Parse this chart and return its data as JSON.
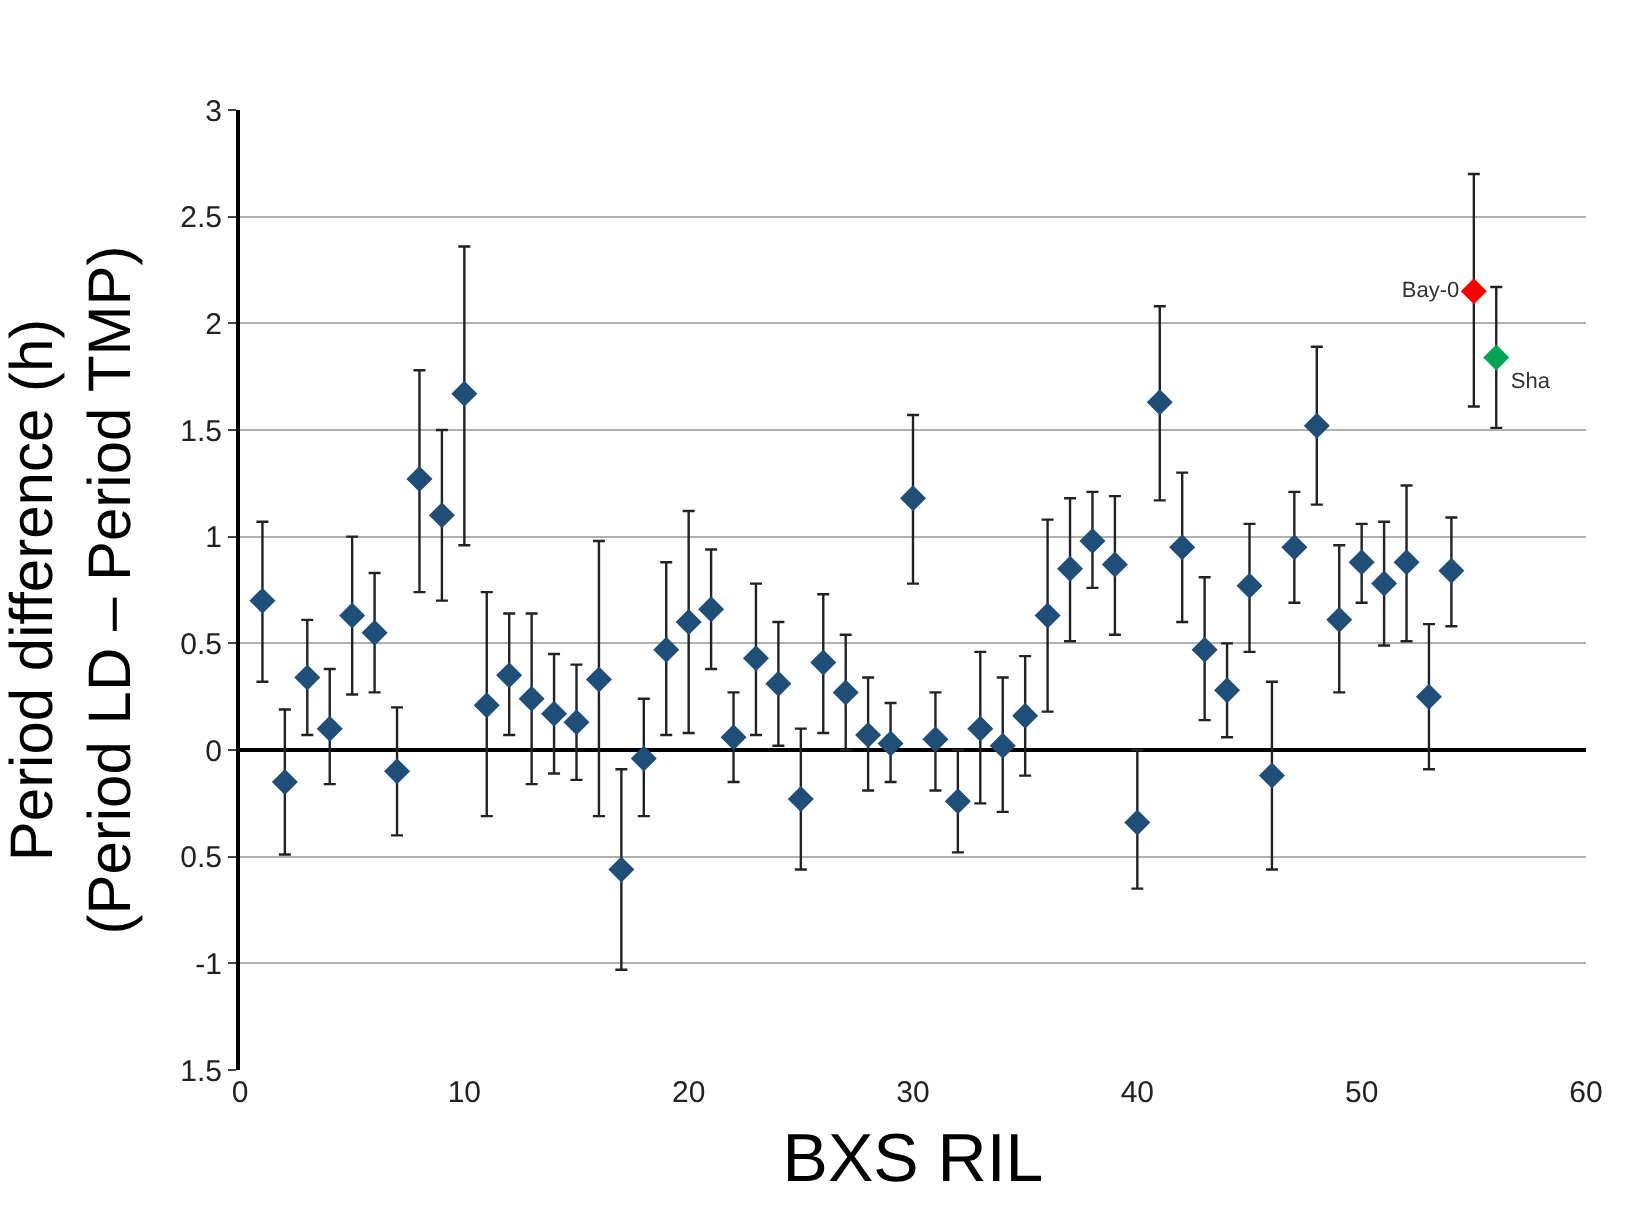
{
  "chart_data": {
    "type": "scatter",
    "xlabel": "BXS RIL",
    "ylabel": "Period difference (h)\n(Period LD – Period TMP)",
    "xlim": [
      0,
      60
    ],
    "xticks": [
      0,
      10,
      20,
      30,
      40,
      50,
      60
    ],
    "ylim": [
      -1.5,
      3
    ],
    "yticks": [
      {
        "value": -1.5,
        "label": "1.5"
      },
      -1,
      {
        "value": -0.5,
        "label": "0.5"
      },
      0,
      0.5,
      1,
      1.5,
      2,
      2.5,
      3
    ],
    "grid": "y",
    "marker": "diamond",
    "legend": false,
    "series": [
      {
        "color": "#1f4e79",
        "x": [
          1,
          2,
          3,
          4,
          5,
          6,
          7,
          8,
          9,
          10,
          11,
          12,
          13,
          14,
          15,
          16,
          17,
          18,
          19,
          20,
          21,
          22,
          23,
          24,
          25,
          26,
          27,
          28,
          29,
          30,
          31,
          32,
          33,
          34,
          35,
          36,
          37,
          38,
          39,
          40,
          41,
          42,
          43,
          44,
          45,
          46,
          47,
          48,
          49,
          50,
          51,
          52,
          53,
          54
        ],
        "values": [
          0.7,
          -0.15,
          0.34,
          0.1,
          0.63,
          0.55,
          -0.1,
          1.27,
          1.1,
          1.67,
          0.21,
          0.35,
          0.24,
          0.17,
          0.13,
          0.33,
          -0.56,
          -0.04,
          0.47,
          0.6,
          0.66,
          0.06,
          0.43,
          0.31,
          -0.23,
          0.41,
          0.27,
          0.07,
          0.03,
          1.18,
          0.05,
          -0.24,
          0.1,
          0.02,
          0.16,
          0.63,
          0.85,
          0.98,
          0.87,
          -0.34,
          1.63,
          0.95,
          0.47,
          0.28,
          0.77,
          -0.12,
          0.95,
          1.52,
          0.61,
          0.88,
          0.78,
          0.88,
          0.25,
          0.84
        ],
        "errors": [
          [
            0.32,
            1.07
          ],
          [
            -0.49,
            0.19
          ],
          [
            0.07,
            0.61
          ],
          [
            -0.16,
            0.38
          ],
          [
            0.26,
            1.0
          ],
          [
            0.27,
            0.83
          ],
          [
            -0.4,
            0.2
          ],
          [
            0.74,
            1.78
          ],
          [
            0.7,
            1.5
          ],
          [
            0.96,
            2.36
          ],
          [
            -0.31,
            0.74
          ],
          [
            0.07,
            0.64
          ],
          [
            -0.16,
            0.64
          ],
          [
            -0.11,
            0.45
          ],
          [
            -0.14,
            0.4
          ],
          [
            -0.31,
            0.98
          ],
          [
            -1.03,
            -0.09
          ],
          [
            -0.31,
            0.24
          ],
          [
            0.07,
            0.88
          ],
          [
            0.08,
            1.12
          ],
          [
            0.38,
            0.94
          ],
          [
            -0.15,
            0.27
          ],
          [
            0.07,
            0.78
          ],
          [
            0.02,
            0.6
          ],
          [
            -0.56,
            0.1
          ],
          [
            0.08,
            0.73
          ],
          [
            0.0,
            0.54
          ],
          [
            -0.19,
            0.34
          ],
          [
            -0.15,
            0.22
          ],
          [
            0.78,
            1.57
          ],
          [
            -0.19,
            0.27
          ],
          [
            -0.48,
            0.0
          ],
          [
            -0.25,
            0.46
          ],
          [
            -0.29,
            0.34
          ],
          [
            -0.12,
            0.44
          ],
          [
            0.18,
            1.08
          ],
          [
            0.51,
            1.18
          ],
          [
            0.76,
            1.21
          ],
          [
            0.54,
            1.19
          ],
          [
            -0.65,
            0.0
          ],
          [
            1.17,
            2.08
          ],
          [
            0.6,
            1.3
          ],
          [
            0.14,
            0.81
          ],
          [
            0.06,
            0.5
          ],
          [
            0.46,
            1.06
          ],
          [
            -0.56,
            0.32
          ],
          [
            0.69,
            1.21
          ],
          [
            1.15,
            1.89
          ],
          [
            0.27,
            0.96
          ],
          [
            0.69,
            1.06
          ],
          [
            0.49,
            1.07
          ],
          [
            0.51,
            1.24
          ],
          [
            -0.09,
            0.59
          ],
          [
            0.58,
            1.09
          ]
        ]
      },
      {
        "name": "Bay-0",
        "color": "#ff0000",
        "x": [
          55
        ],
        "values": [
          2.15
        ],
        "errors": [
          [
            1.61,
            2.7
          ]
        ]
      },
      {
        "name": "Sha",
        "color": "#00a651",
        "x": [
          56
        ],
        "values": [
          1.84
        ],
        "errors": [
          [
            1.51,
            2.17
          ]
        ]
      }
    ]
  }
}
